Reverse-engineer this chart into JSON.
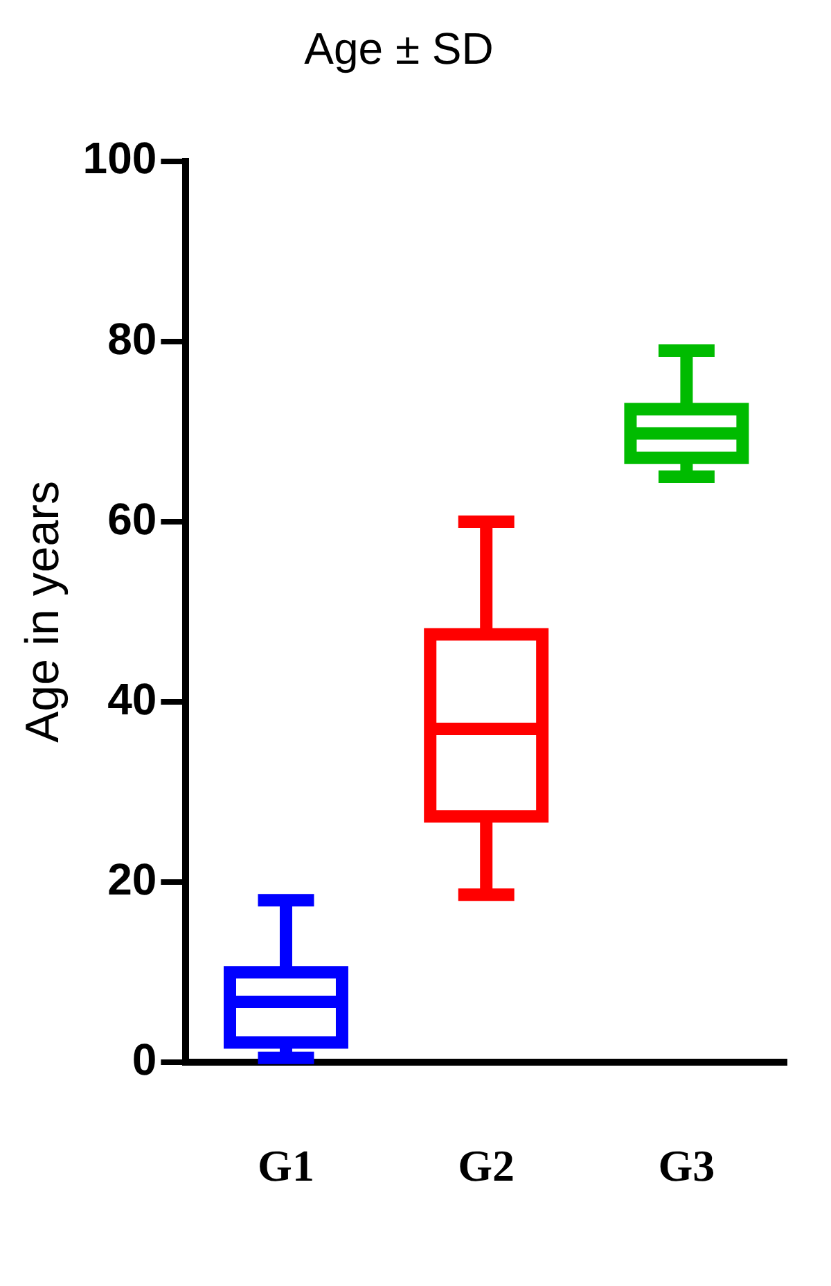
{
  "chart_data": {
    "type": "box",
    "title": "Age ± SD",
    "ylabel": "Age in years",
    "categories": [
      "G1",
      "G2",
      "G3"
    ],
    "colors": [
      "#0000ff",
      "#ff0000",
      "#00bb00"
    ],
    "boxes": [
      {
        "low": 0.5,
        "q1": 2.2,
        "median": 6.7,
        "q3": 10,
        "high": 18
      },
      {
        "low": 18.6,
        "q1": 27.3,
        "median": 37,
        "q3": 47.5,
        "high": 60
      },
      {
        "low": 65,
        "q1": 67.1,
        "median": 69.8,
        "q3": 72.5,
        "high": 79
      }
    ],
    "ylim": [
      0,
      100
    ],
    "yticks": [
      0,
      20,
      40,
      60,
      80,
      100
    ],
    "grid": false,
    "legend": false
  }
}
